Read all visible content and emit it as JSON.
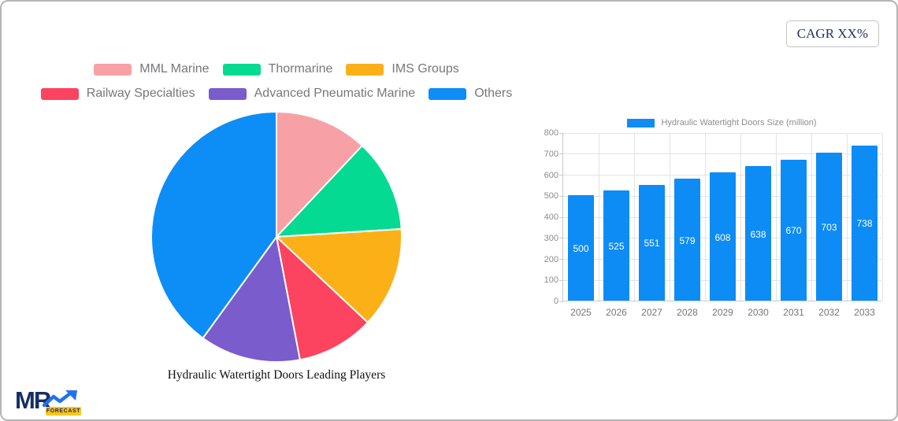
{
  "card": {
    "cagr_label": "CAGR XX%"
  },
  "legend": {
    "rows": [
      [
        {
          "label": "MML Marine",
          "color": "#f7a1a6"
        },
        {
          "label": "Thormarine",
          "color": "#04da92"
        },
        {
          "label": "IMS Groups",
          "color": "#fcb017"
        }
      ],
      [
        {
          "label": "Railway Specialties",
          "color": "#fc435f"
        },
        {
          "label": "Advanced Pneumatic Marine",
          "color": "#7a5ccd"
        },
        {
          "label": "Others",
          "color": "#0d8df6"
        }
      ]
    ]
  },
  "chart_data": [
    {
      "type": "pie",
      "title": "Hydraulic Watertight Doors Leading Players",
      "slices": [
        {
          "label": "MML Marine",
          "value": 12,
          "color": "#f7a1a6"
        },
        {
          "label": "Thormarine",
          "value": 12,
          "color": "#04da92"
        },
        {
          "label": "IMS Groups",
          "value": 13,
          "color": "#fcb017"
        },
        {
          "label": "Railway Specialties",
          "value": 10,
          "color": "#fc435f"
        },
        {
          "label": "Advanced Pneumatic Marine",
          "value": 13,
          "color": "#7a5ccd"
        },
        {
          "label": "Others",
          "value": 40,
          "color": "#0d8df6"
        }
      ],
      "start_angle_deg": -90,
      "direction": "clockwise",
      "legend_position": "top"
    },
    {
      "type": "bar",
      "legend_label": "Hydraulic Watertight Doors Size (million)",
      "categories": [
        "2025",
        "2026",
        "2027",
        "2028",
        "2029",
        "2030",
        "2031",
        "2032",
        "2033"
      ],
      "values": [
        500,
        525,
        551,
        579,
        608,
        638,
        670,
        703,
        738
      ],
      "bar_color": "#0d8cf5",
      "ylim": [
        0,
        800
      ],
      "yticks": [
        0,
        100,
        200,
        300,
        400,
        500,
        600,
        700,
        800
      ],
      "grid": true,
      "value_labels": "inside-center-white"
    }
  ],
  "logo": {
    "text": "MR",
    "badge": "FORECAST",
    "navy": "#152e67",
    "arrow_color": "#2371f0",
    "badge_color": "#ffc517"
  }
}
